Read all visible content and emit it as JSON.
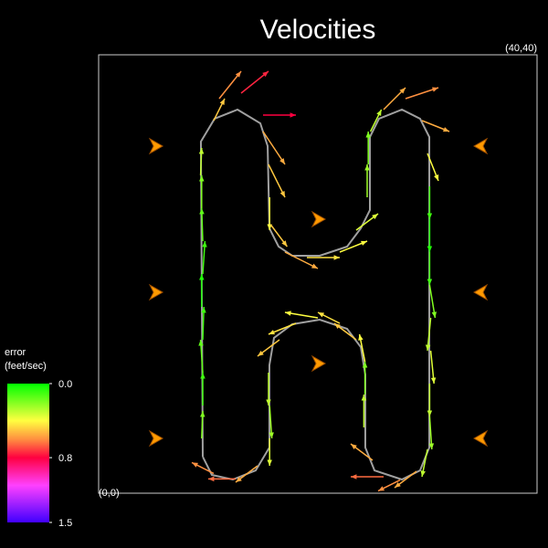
{
  "chart_data": {
    "type": "quiver",
    "title": "Velocities",
    "xlim": [
      0,
      40
    ],
    "ylim": [
      0,
      40
    ],
    "corner_labels": [
      "(0,0)",
      "(40,40)"
    ],
    "path": {
      "color": "#a0a0a0",
      "x": [
        9.5,
        10.33,
        12.25,
        14.33,
        15.58,
        15.58,
        16,
        17.67,
        20.17,
        22.67,
        23.92,
        24.33,
        24.33,
        25.17,
        27.67,
        29.33,
        30.17,
        30.17,
        29.33,
        27.67,
        25.58,
        24.75,
        24.75,
        23.92,
        22.67,
        20.17,
        17.67,
        16.42,
        15.58,
        15.42,
        14.75,
        12.67,
        10.58,
        9.33,
        9.5
      ],
      "y": [
        3.33,
        1.67,
        1.25,
        2.08,
        4.17,
        11.67,
        14.17,
        15.42,
        15.83,
        15,
        13.33,
        10.83,
        4.17,
        2.08,
        1.25,
        2.08,
        4.17,
        32.5,
        34.17,
        35,
        34.17,
        32.5,
        25.83,
        24.17,
        22.5,
        21.67,
        21.67,
        22.5,
        24.17,
        31.67,
        33.75,
        35,
        34.17,
        32.08,
        3.33
      ]
    },
    "markers": {
      "color": "#ff9a00",
      "x": [
        5.17,
        5.17,
        5.17,
        34.92,
        34.92,
        34.92,
        20,
        20
      ],
      "y": [
        31.67,
        18.33,
        5,
        31.67,
        18.33,
        5,
        25,
        11.83
      ]
    },
    "arrows": {
      "x": [
        9.4,
        9.5,
        9.5,
        9.5,
        9.4,
        9.5,
        9.5,
        9.4,
        9.3,
        10.5,
        11,
        13,
        15,
        15,
        15.5,
        15.6,
        15.7,
        17,
        19,
        22,
        23.5,
        24.5,
        24.6,
        24.8,
        26,
        28,
        29.5,
        30,
        30.2,
        30.2,
        30.2,
        30.2,
        30.3,
        30.3,
        30.2,
        30.2,
        30,
        29,
        27.5,
        26,
        25,
        24.2,
        24.3,
        24.3,
        23.5,
        22,
        20,
        18,
        16.5,
        15.5,
        15.6,
        15.6,
        14.5,
        12.5,
        10.5
      ],
      "y": [
        5,
        8,
        11,
        14,
        17,
        20,
        23,
        26,
        29,
        34,
        36,
        36.5,
        34.5,
        33,
        30,
        27,
        24.5,
        22,
        21.5,
        22,
        24,
        27,
        30,
        33,
        35,
        36,
        34,
        31,
        28,
        25,
        22,
        19,
        16,
        13,
        10,
        7,
        4,
        2,
        1.2,
        1.5,
        3,
        6,
        9,
        12,
        14,
        15.5,
        16,
        15.5,
        14,
        11,
        8,
        5,
        2.5,
        1.3,
        1.8
      ],
      "u": [
        0.1,
        0,
        -0.2,
        0.1,
        0,
        0.2,
        -0.1,
        0,
        0.1,
        1,
        2,
        2.5,
        3,
        2,
        1.5,
        0,
        1.5,
        3,
        3,
        2.5,
        2,
        0,
        0,
        1,
        2,
        3,
        2.5,
        1,
        0,
        0,
        0,
        0.5,
        -0.3,
        0.3,
        0,
        0.2,
        -0.5,
        -2,
        -2,
        -3,
        -2,
        0,
        0,
        -0.5,
        -2,
        -2,
        -3,
        -2.5,
        -2,
        0,
        0.2,
        0,
        -2,
        -2.5,
        -2
      ],
      "v": [
        2.5,
        3,
        3,
        3,
        3,
        3,
        3,
        3,
        2.5,
        2,
        2.5,
        2,
        0,
        -3,
        -3,
        -3,
        -2,
        -1.5,
        0,
        1,
        1.5,
        3,
        3,
        2,
        2,
        1,
        -1,
        -2.5,
        -3,
        -3,
        -3,
        -3,
        -3,
        -3,
        -3,
        -3,
        -2.5,
        -1.5,
        -1,
        0,
        1.5,
        3,
        3,
        2.5,
        1.5,
        1,
        0.5,
        -1,
        -1.5,
        -3,
        -3,
        -2.5,
        -1.5,
        0,
        1
      ],
      "error": [
        0.2,
        0.1,
        0.15,
        0.1,
        0.05,
        0.1,
        0.15,
        0.2,
        0.3,
        0.5,
        0.6,
        0.75,
        0.8,
        0.55,
        0.5,
        0.4,
        0.5,
        0.55,
        0.45,
        0.4,
        0.35,
        0.25,
        0.2,
        0.3,
        0.55,
        0.6,
        0.55,
        0.4,
        0.1,
        0.05,
        0.1,
        0.2,
        0.3,
        0.35,
        0.3,
        0.25,
        0.3,
        0.55,
        0.6,
        0.65,
        0.55,
        0.3,
        0.2,
        0.4,
        0.5,
        0.45,
        0.4,
        0.45,
        0.5,
        0.3,
        0.25,
        0.35,
        0.55,
        0.65,
        0.6
      ]
    },
    "colorbar": {
      "label": [
        "error",
        "(feet/sec)"
      ],
      "lim": [
        0,
        1.5
      ],
      "ticks": [
        {
          "value": 0,
          "label": "0.0"
        },
        0.8,
        1.5
      ],
      "stops": [
        {
          "value": 0,
          "color": "#00ff00"
        },
        {
          "value": 0.4,
          "color": "#ffff40"
        },
        {
          "value": 0.6,
          "color": "#ff9040"
        },
        {
          "value": 0.8,
          "color": "#ff0040"
        },
        {
          "value": 1.1,
          "color": "#ff40ff"
        },
        {
          "value": 1.5,
          "color": "#4000ff"
        }
      ]
    }
  }
}
